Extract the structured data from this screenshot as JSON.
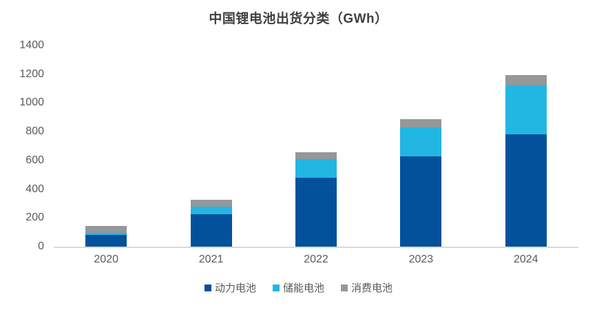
{
  "title": "中国锂电池出货分类（GWh）",
  "colors": {
    "power_battery": "#03519B",
    "storage_battery": "#22B6E3",
    "consumer_battery": "#95979A",
    "axis_line": "#D9D9D9",
    "tick_text": "#595959",
    "title_text": "#3F3F3F"
  },
  "chart_data": {
    "type": "bar",
    "stacked": true,
    "title": "中国锂电池出货分类（GWh）",
    "unit": "GWh",
    "categories": [
      "2020",
      "2021",
      "2022",
      "2023",
      "2024"
    ],
    "series": [
      {
        "name": "动力电池",
        "key": "power-battery",
        "color": "#03519B",
        "values": [
          80,
          226,
          480,
          630,
          780
        ]
      },
      {
        "name": "储能电池",
        "key": "energy-storage-battery",
        "color": "#22B6E3",
        "values": [
          16,
          53,
          130,
          200,
          340
        ]
      },
      {
        "name": "消费电池",
        "key": "consumer-battery",
        "color": "#95979A",
        "values": [
          46,
          48,
          45,
          55,
          75
        ]
      }
    ],
    "xlabel": "",
    "ylabel": "",
    "ylim": [
      0,
      1400
    ],
    "yticks": [
      0,
      200,
      400,
      600,
      800,
      1000,
      1200,
      1400
    ],
    "grid": false,
    "legend_position": "bottom"
  }
}
